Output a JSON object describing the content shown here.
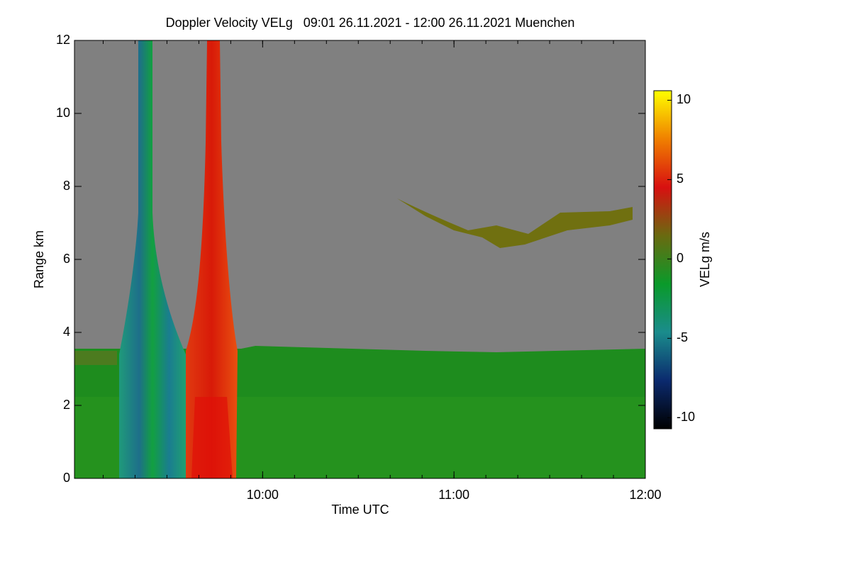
{
  "chart_data": {
    "type": "heatmap",
    "title": "Doppler Velocity VELg   09:01 26.11.2021 - 12:00 26.11.2021 Muenchen",
    "xlabel": "Time UTC",
    "ylabel": "Range km",
    "xlim": [
      "09:01",
      "12:00"
    ],
    "xticks": [
      "10:00",
      "11:00",
      "12:00"
    ],
    "ylim": [
      0,
      12
    ],
    "yticks": [
      0,
      2,
      4,
      6,
      8,
      10,
      12
    ],
    "colorbar": {
      "label": "VELg m/s",
      "clim": [
        -10.7,
        10.6
      ],
      "ticks": [
        -10,
        -5,
        0,
        5,
        10
      ],
      "colors": [
        "#000000",
        "#0b2a6e",
        "#1a8c8c",
        "#0a9a2a",
        "#6a6a10",
        "#d81010",
        "#f08000",
        "#ffff00"
      ]
    }
  }
}
